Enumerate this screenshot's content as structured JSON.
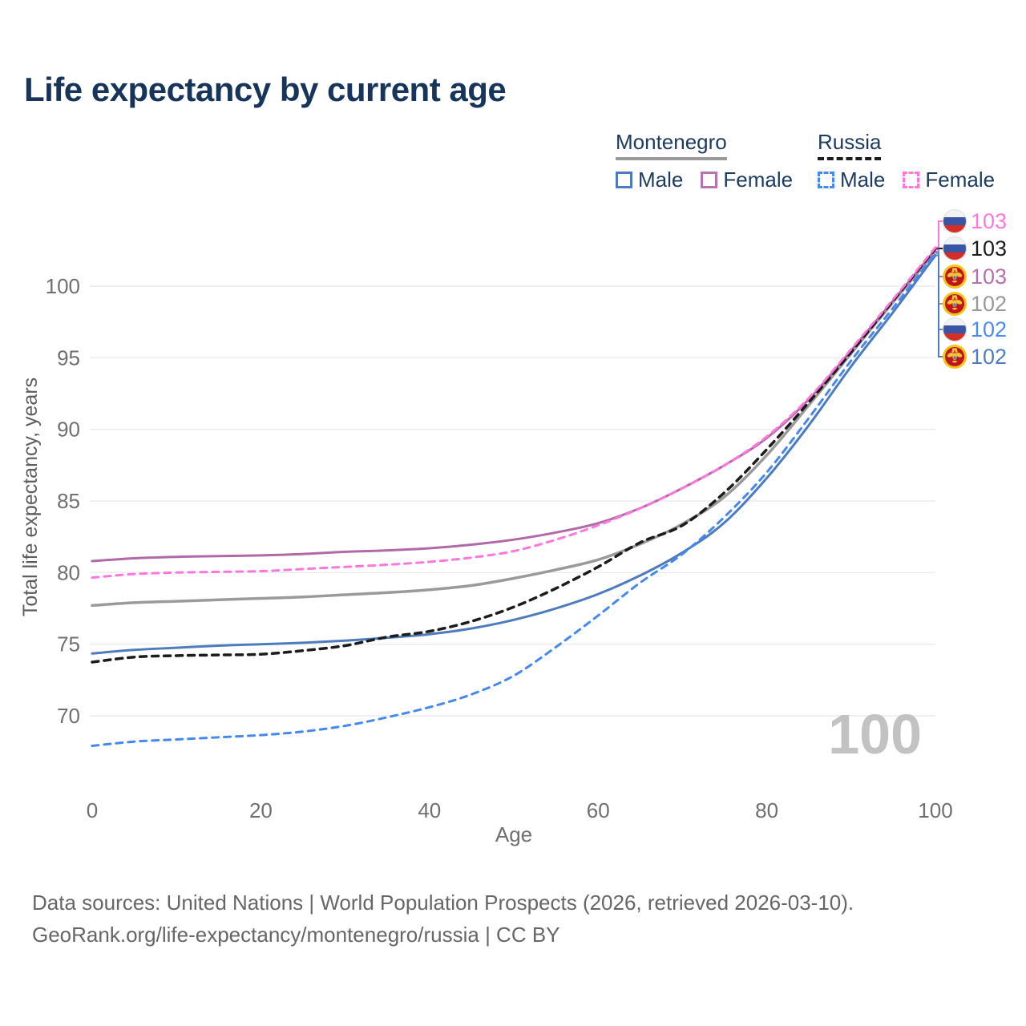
{
  "title": "Life expectancy by current age",
  "legend": {
    "groups": [
      {
        "country": "Montenegro",
        "line_style": "solid",
        "underline_color": "#9a9a9a",
        "items": [
          {
            "label": "Male",
            "color": "#4d7bbe",
            "dashed": false
          },
          {
            "label": "Female",
            "color": "#b873ae",
            "dashed": false
          }
        ]
      },
      {
        "country": "Russia",
        "line_style": "dashed",
        "underline_color": "#1c1c1c",
        "items": [
          {
            "label": "Male",
            "color": "#4589f0",
            "dashed": true
          },
          {
            "label": "Female",
            "color": "#ff77dd",
            "dashed": true
          }
        ]
      }
    ]
  },
  "watermark_age": "100",
  "axes": {
    "x": {
      "label": "Age",
      "ticks": [
        0,
        20,
        40,
        60,
        80,
        100
      ],
      "min": 0,
      "max": 100
    },
    "y": {
      "label": "Total life expectancy, years",
      "ticks": [
        70,
        75,
        80,
        85,
        90,
        95,
        100
      ],
      "min": 66.5,
      "max": 103.5
    }
  },
  "chart_data": {
    "type": "line",
    "title": "Life expectancy by current age",
    "xlabel": "Age",
    "ylabel": "Total life expectancy, years",
    "x_ages": [
      0,
      5,
      10,
      15,
      20,
      25,
      30,
      35,
      40,
      45,
      50,
      55,
      60,
      65,
      70,
      75,
      80,
      85,
      90,
      95,
      100
    ],
    "grid": "horizontal-only",
    "series": [
      {
        "id": "montenegro-total",
        "name": "Montenegro (both sexes)",
        "country": "Montenegro",
        "flag": "montenegro",
        "color": "#9a9a9a",
        "dashed": false,
        "width": 3.5,
        "values": [
          77.7,
          77.9,
          78.0,
          78.1,
          78.2,
          78.3,
          78.45,
          78.6,
          78.8,
          79.1,
          79.6,
          80.2,
          80.9,
          82.0,
          83.4,
          85.3,
          88.2,
          91.7,
          95.3,
          98.9,
          102.4
        ],
        "end_label": {
          "text": "102",
          "color": "#9a9a9a"
        }
      },
      {
        "id": "montenegro-female",
        "name": "Montenegro Female",
        "country": "Montenegro",
        "flag": "montenegro",
        "color": "#b169a8",
        "dashed": false,
        "width": 3,
        "values": [
          80.8,
          81.0,
          81.1,
          81.15,
          81.2,
          81.3,
          81.45,
          81.55,
          81.7,
          81.95,
          82.3,
          82.8,
          83.45,
          84.5,
          85.9,
          87.5,
          89.4,
          92.1,
          95.5,
          99.0,
          102.55
        ],
        "end_label": {
          "text": "103",
          "color": "#b570ab"
        }
      },
      {
        "id": "montenegro-male",
        "name": "Montenegro Male",
        "country": "Montenegro",
        "flag": "montenegro",
        "color": "#4d7bbe",
        "dashed": false,
        "width": 3,
        "values": [
          74.35,
          74.6,
          74.75,
          74.9,
          75.0,
          75.1,
          75.25,
          75.45,
          75.7,
          76.1,
          76.7,
          77.5,
          78.5,
          79.8,
          81.4,
          83.5,
          86.6,
          90.3,
          94.4,
          98.2,
          102.15
        ],
        "end_label": {
          "text": "102",
          "color": "#4f7dc0"
        }
      },
      {
        "id": "russia-total",
        "name": "Russia (both sexes)",
        "country": "Russia",
        "flag": "russia",
        "color": "#1c1c1c",
        "dashed": true,
        "width": 3.5,
        "values": [
          73.75,
          74.1,
          74.2,
          74.25,
          74.3,
          74.55,
          74.9,
          75.5,
          75.9,
          76.6,
          77.6,
          78.9,
          80.4,
          82.1,
          83.3,
          85.6,
          88.6,
          91.9,
          95.4,
          99.0,
          102.62
        ],
        "end_label": {
          "text": "103",
          "color": "#1c1c1c"
        }
      },
      {
        "id": "russia-female",
        "name": "Russia Female",
        "country": "Russia",
        "flag": "russia",
        "color": "#ff77dd",
        "dashed": true,
        "width": 3,
        "values": [
          79.65,
          79.9,
          80.0,
          80.05,
          80.1,
          80.25,
          80.4,
          80.55,
          80.75,
          81.05,
          81.5,
          82.3,
          83.3,
          84.5,
          85.9,
          87.5,
          89.5,
          92.2,
          95.6,
          99.1,
          102.7
        ],
        "end_label": {
          "text": "103",
          "color": "#ff77dd"
        }
      },
      {
        "id": "russia-male",
        "name": "Russia Male",
        "country": "Russia",
        "flag": "russia",
        "color": "#4589f0",
        "dashed": true,
        "width": 3,
        "values": [
          67.9,
          68.2,
          68.35,
          68.5,
          68.65,
          68.9,
          69.3,
          69.9,
          70.6,
          71.5,
          72.8,
          74.8,
          77.0,
          79.3,
          81.3,
          83.9,
          87.0,
          90.8,
          94.8,
          98.5,
          102.3
        ],
        "end_label": {
          "text": "102",
          "color": "#4b8bf0"
        }
      }
    ],
    "end_label_order": [
      "russia-female",
      "russia-total",
      "montenegro-female",
      "montenegro-total",
      "russia-male",
      "montenegro-male"
    ]
  },
  "footer": {
    "line1": "Data sources: United Nations | World Population Prospects (2026, retrieved 2026-03-10).",
    "line2": "GeoRank.org/life-expectancy/montenegro/russia | CC BY"
  }
}
